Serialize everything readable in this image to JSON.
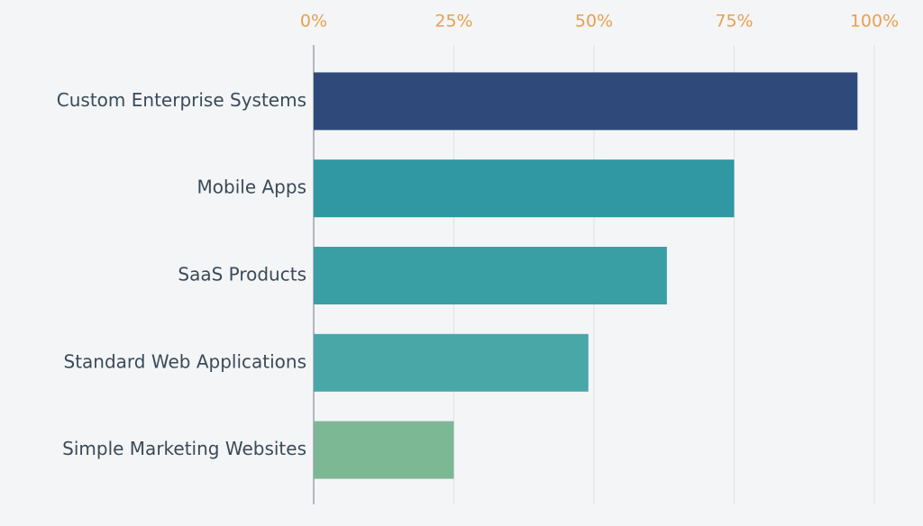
{
  "chart_data": {
    "type": "bar",
    "orientation": "horizontal",
    "categories": [
      "Custom Enterprise Systems",
      "Mobile Apps",
      "SaaS Products",
      "Standard Web Applications",
      "Simple Marketing Websites"
    ],
    "values": [
      97,
      75,
      63,
      49,
      25
    ],
    "colors": [
      "#2f4a7a",
      "#2f98a2",
      "#3a9fa5",
      "#4aa7a8",
      "#7db894"
    ],
    "xlim": [
      0,
      100
    ],
    "xticks": [
      {
        "value": 0,
        "label": "0%"
      },
      {
        "value": 25,
        "label": "25%"
      },
      {
        "value": 50,
        "label": "50%"
      },
      {
        "value": 75,
        "label": "75%"
      },
      {
        "value": 100,
        "label": "100%"
      }
    ],
    "grid": true
  }
}
